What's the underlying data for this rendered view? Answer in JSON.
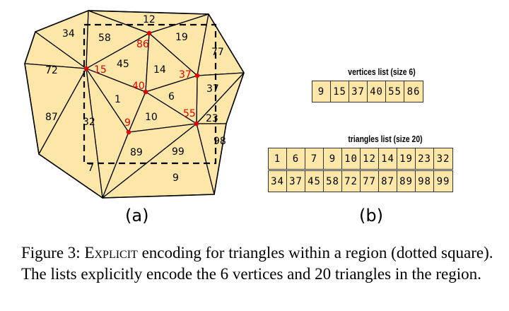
{
  "figure": {
    "panel_a_label": "(a)",
    "panel_b_label": "(b)",
    "vertices_list": {
      "title": "vertices list (size 6)",
      "values": [
        "9",
        "15",
        "37",
        "40",
        "55",
        "86"
      ]
    },
    "triangles_list": {
      "title": "triangles list (size 20)",
      "row1": [
        "1",
        "6",
        "7",
        "9",
        "10",
        "12",
        "14",
        "19",
        "23",
        "32"
      ],
      "row2": [
        "34",
        "37",
        "45",
        "58",
        "72",
        "77",
        "87",
        "89",
        "98",
        "99"
      ]
    },
    "triangle_labels": [
      "12",
      "34",
      "58",
      "19",
      "77",
      "72",
      "45",
      "14",
      "37",
      "87",
      "1",
      "6",
      "32",
      "10",
      "23",
      "98",
      "7",
      "89",
      "99",
      "9"
    ],
    "vertex_labels": [
      "86",
      "15",
      "37",
      "40",
      "55",
      "9"
    ],
    "colors": {
      "triangle_fill": "#fce7a8",
      "vertex_highlight": "#e00000",
      "edge": "#000000"
    }
  },
  "caption": {
    "prefix": "Figure 3: ",
    "name": "Explicit",
    "rest": " encoding for triangles within a region (dotted square). The lists explicitly encode the 6 vertices and 20 triangles in the region."
  }
}
